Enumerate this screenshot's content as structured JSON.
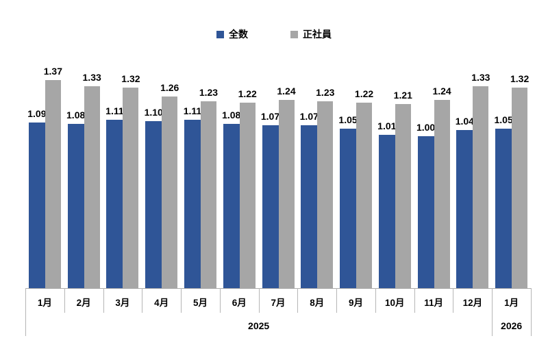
{
  "legend": {
    "items": [
      {
        "label": "全数",
        "color": "#2f5597"
      },
      {
        "label": "正社員",
        "color": "#a6a6a6"
      }
    ]
  },
  "colors": {
    "zensu_blue": "#2f5597",
    "seishain_gray": "#a6a6a6",
    "axis_gray": "#a9a9a9"
  },
  "chart_data": {
    "type": "bar",
    "title": "",
    "xlabel": "",
    "ylabel": "",
    "ylim": [
      0,
      1.45
    ],
    "grid": false,
    "legend_position": "top-center",
    "value_labels_shown": true,
    "value_label_format": "0.00",
    "categories": [
      "1月",
      "2月",
      "3月",
      "4月",
      "5月",
      "6月",
      "7月",
      "8月",
      "9月",
      "10月",
      "11月",
      "12月",
      "1月"
    ],
    "year_groups": [
      {
        "label": "2025",
        "start": 0,
        "end": 11
      },
      {
        "label": "2026",
        "start": 12,
        "end": 12
      }
    ],
    "series": [
      {
        "name": "全数",
        "color": "#2f5597",
        "values": [
          1.09,
          1.08,
          1.11,
          1.1,
          1.11,
          1.08,
          1.07,
          1.07,
          1.05,
          1.01,
          1.0,
          1.04,
          1.05
        ]
      },
      {
        "name": "正社員",
        "color": "#a6a6a6",
        "values": [
          1.37,
          1.33,
          1.32,
          1.26,
          1.23,
          1.22,
          1.24,
          1.23,
          1.22,
          1.21,
          1.24,
          1.33,
          1.32
        ]
      }
    ]
  }
}
